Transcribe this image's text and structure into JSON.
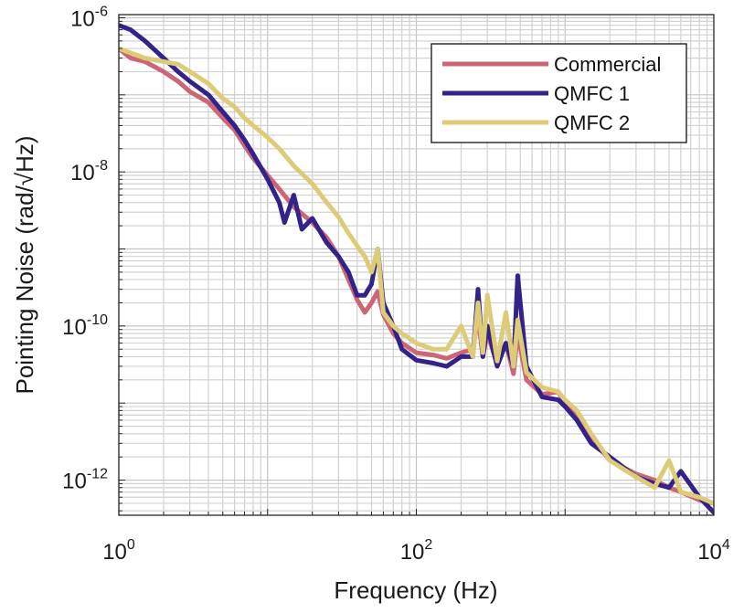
{
  "chart_data": {
    "type": "line",
    "title": "",
    "xlabel": "Frequency (Hz)",
    "ylabel": "Pointing Noise (rad/√Hz)",
    "xscale": "log",
    "yscale": "log",
    "xlim": [
      1,
      10000
    ],
    "ylim": [
      3.5e-13,
      1.1e-06
    ],
    "grid": true,
    "legend_position": "top-right",
    "x_ticks": [
      {
        "value": 1,
        "base": "10",
        "exp": "0"
      },
      {
        "value": 100,
        "base": "10",
        "exp": "2"
      },
      {
        "value": 10000,
        "base": "10",
        "exp": "4"
      }
    ],
    "y_ticks": [
      {
        "value": 1e-06,
        "base": "10",
        "exp": "-6"
      },
      {
        "value": 1e-08,
        "base": "10",
        "exp": "-8"
      },
      {
        "value": 1e-10,
        "base": "10",
        "exp": "-10"
      },
      {
        "value": 1e-12,
        "base": "10",
        "exp": "-12"
      }
    ],
    "series": [
      {
        "name": "Commercial",
        "color": "#cc6677",
        "x": [
          1,
          1.2,
          1.5,
          2,
          2.5,
          3,
          4,
          5,
          6,
          7,
          8,
          10,
          12,
          15,
          20,
          25,
          30,
          35,
          40,
          45,
          50,
          55,
          60,
          70,
          80,
          100,
          130,
          160,
          200,
          240,
          260,
          280,
          300,
          350,
          400,
          450,
          480,
          550,
          700,
          900,
          1000,
          1200,
          1500,
          2000,
          3000,
          4000,
          5000,
          6000,
          8000,
          10000
        ],
        "y": [
          4e-07,
          3e-07,
          2.7e-07,
          2e-07,
          1.5e-07,
          1.1e-07,
          8e-08,
          5e-08,
          3.5e-08,
          2.2e-08,
          1.5e-08,
          9e-09,
          6e-09,
          3.5e-09,
          2.2e-09,
          1.4e-09,
          8e-10,
          4e-10,
          2.2e-10,
          1.5e-10,
          2e-10,
          2.8e-10,
          1.4e-10,
          8e-11,
          6e-11,
          4.5e-11,
          4.2e-11,
          3.8e-11,
          4.5e-11,
          5e-11,
          1.3e-10,
          4e-11,
          8e-11,
          3.2e-11,
          6e-11,
          2.4e-11,
          8e-11,
          2e-11,
          1.3e-11,
          1.4e-11,
          1e-11,
          7e-12,
          3.6e-12,
          1.8e-12,
          1.2e-12,
          1e-12,
          8e-13,
          7e-13,
          5.5e-13,
          5e-13
        ]
      },
      {
        "name": "QMFC 1",
        "color": "#332288",
        "x": [
          1,
          1.2,
          1.5,
          2,
          2.5,
          3,
          4,
          5,
          6,
          7,
          8,
          10,
          12,
          13,
          15,
          17,
          20,
          25,
          30,
          35,
          40,
          45,
          50,
          55,
          60,
          70,
          80,
          100,
          130,
          160,
          200,
          240,
          260,
          280,
          300,
          350,
          400,
          450,
          480,
          550,
          700,
          900,
          1000,
          1200,
          1500,
          2000,
          3000,
          4000,
          5000,
          6000,
          8000,
          10000
        ],
        "y": [
          8e-07,
          7e-07,
          5e-07,
          3e-07,
          2e-07,
          1.5e-07,
          1e-07,
          6e-08,
          4e-08,
          2.6e-08,
          1.7e-08,
          8e-09,
          4e-09,
          2.2e-09,
          5e-09,
          1.8e-09,
          2.5e-09,
          1.2e-09,
          8e-10,
          5e-10,
          2.5e-10,
          2.5e-10,
          3.5e-10,
          1e-09,
          2e-10,
          1e-10,
          5e-11,
          3.6e-11,
          3.3e-11,
          3e-11,
          4e-11,
          4e-11,
          3e-10,
          4e-11,
          1e-10,
          3e-11,
          6e-11,
          3e-11,
          4.5e-10,
          3e-11,
          1.2e-11,
          1.1e-11,
          9e-12,
          6e-12,
          3e-12,
          2e-12,
          1.1e-12,
          9e-13,
          8e-13,
          1.3e-12,
          6e-13,
          3.8e-13
        ]
      },
      {
        "name": "QMFC 2",
        "color": "#ddcc77",
        "x": [
          1,
          1.2,
          1.5,
          2,
          2.5,
          3,
          4,
          5,
          6,
          7,
          8,
          10,
          12,
          15,
          20,
          25,
          30,
          35,
          40,
          45,
          50,
          55,
          60,
          70,
          80,
          100,
          130,
          160,
          200,
          240,
          260,
          280,
          300,
          350,
          400,
          450,
          480,
          550,
          700,
          900,
          1000,
          1200,
          1500,
          2000,
          3000,
          4000,
          5000,
          6000,
          8000,
          10000
        ],
        "y": [
          4e-07,
          3.5e-07,
          3e-07,
          2.7e-07,
          2.5e-07,
          2e-07,
          1.4e-07,
          9e-08,
          7e-08,
          5e-08,
          4e-08,
          2.8e-08,
          2e-08,
          1.2e-08,
          7e-09,
          4e-09,
          2.6e-09,
          1.6e-09,
          1.1e-09,
          8e-10,
          5e-10,
          1e-09,
          1.5e-10,
          1e-10,
          8e-11,
          6e-11,
          5e-11,
          5e-11,
          1e-10,
          4e-11,
          2e-10,
          4.5e-11,
          2.5e-10,
          3.5e-11,
          1.5e-10,
          3e-11,
          1.2e-10,
          2.5e-11,
          1.6e-11,
          1.4e-11,
          1.1e-11,
          8e-12,
          4e-12,
          1.8e-12,
          1.1e-12,
          8e-13,
          1.8e-12,
          7e-13,
          6e-13,
          5e-13
        ]
      }
    ]
  }
}
